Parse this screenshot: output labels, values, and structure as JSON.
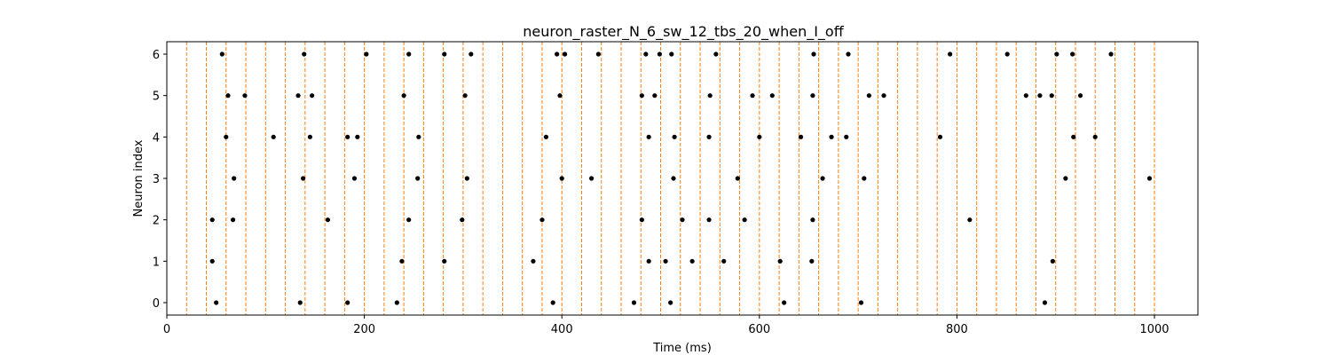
{
  "chart_data": {
    "type": "scatter",
    "title": "neuron_raster_N_6_sw_12_tbs_20_when_I_off",
    "xlabel": "Time (ms)",
    "ylabel": "Neuron index",
    "xlim": [
      0,
      1044
    ],
    "ylim": [
      -0.3,
      6.3
    ],
    "xticks": [
      0,
      200,
      400,
      600,
      800,
      1000
    ],
    "yticks": [
      0,
      1,
      2,
      3,
      4,
      5,
      6
    ],
    "marker_color": "#000000",
    "vline_color": "#ff7f0e",
    "vlines": [
      20,
      40,
      60,
      80,
      100,
      120,
      140,
      160,
      180,
      200,
      220,
      240,
      260,
      280,
      300,
      320,
      340,
      360,
      380,
      400,
      420,
      440,
      460,
      480,
      500,
      520,
      540,
      560,
      580,
      600,
      620,
      640,
      660,
      680,
      700,
      720,
      740,
      760,
      780,
      800,
      820,
      840,
      860,
      880,
      900,
      920,
      940,
      960,
      980,
      1000
    ],
    "series": [
      {
        "neuron": 0,
        "times": [
          50,
          135,
          183,
          233,
          391,
          473,
          510,
          625,
          703,
          889
        ]
      },
      {
        "neuron": 1,
        "times": [
          46,
          238,
          281,
          371,
          488,
          505,
          532,
          564,
          621,
          653,
          897
        ]
      },
      {
        "neuron": 2,
        "times": [
          46,
          67,
          163,
          245,
          299,
          380,
          481,
          522,
          549,
          585,
          654,
          813
        ]
      },
      {
        "neuron": 3,
        "times": [
          68,
          138,
          190,
          254,
          304,
          400,
          430,
          513,
          578,
          664,
          706,
          910,
          995
        ]
      },
      {
        "neuron": 4,
        "times": [
          60,
          108,
          145,
          183,
          193,
          255,
          384,
          488,
          514,
          549,
          600,
          642,
          673,
          688,
          783,
          918,
          940
        ]
      },
      {
        "neuron": 5,
        "times": [
          62,
          79,
          133,
          147,
          240,
          302,
          398,
          481,
          494,
          550,
          593,
          613,
          654,
          711,
          726,
          870,
          884,
          896,
          925
        ]
      },
      {
        "neuron": 6,
        "times": [
          56,
          139,
          202,
          245,
          281,
          308,
          395,
          403,
          437,
          485,
          499,
          511,
          556,
          655,
          690,
          793,
          851,
          901,
          917,
          956
        ]
      }
    ]
  }
}
